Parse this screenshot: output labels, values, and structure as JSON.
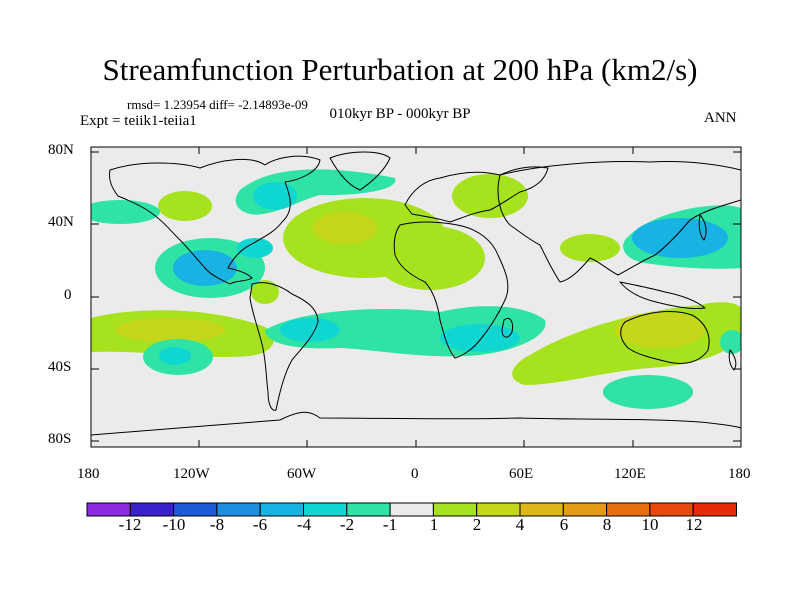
{
  "header": {
    "title": "Streamfunction Perturbation at 200 hPa (km2/s)",
    "stats": "rmsd= 1.23954 diff= -2.14893e-09",
    "experiment": "Expt = teiik1-teiia1",
    "period": "010kyr BP - 000kyr BP",
    "season": "ANN"
  },
  "axes": {
    "lat_labels": [
      "80N",
      "40N",
      "0",
      "40S",
      "80S"
    ],
    "lon_labels": [
      "180",
      "120W",
      "60W",
      "0",
      "60E",
      "120E",
      "180"
    ]
  },
  "colorbar": {
    "labels": [
      "-12",
      "-10",
      "-8",
      "-6",
      "-4",
      "-2",
      "-1",
      "1",
      "2",
      "4",
      "6",
      "8",
      "10",
      "12"
    ],
    "colors": [
      "#8a2be2",
      "#3a22cc",
      "#1f5bd6",
      "#1e8fe0",
      "#19b3e3",
      "#10d6d2",
      "#2fe3a5",
      "#ebebeb",
      "#a6e21d",
      "#c6d61a",
      "#ddb718",
      "#e39a14",
      "#e66f10",
      "#e84a0c",
      "#e82a08"
    ]
  },
  "fill_colors": {
    "neutral": "#ebebeb",
    "pos1": "#a6e21d",
    "pos2": "#c6d61a",
    "neg1": "#2fe3a5",
    "neg2": "#10d6d2",
    "neg3": "#19b3e3"
  }
}
